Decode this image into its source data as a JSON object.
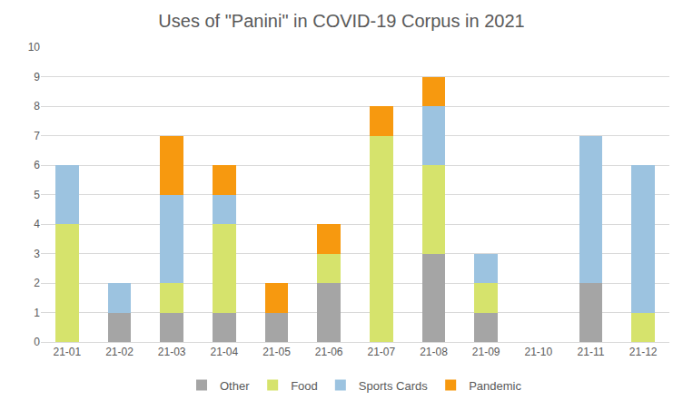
{
  "chart_data": {
    "type": "bar",
    "title": "Uses of \"Panini\" in COVID-19 Corpus in 2021",
    "categories": [
      "21-01",
      "21-02",
      "21-03",
      "21-04",
      "21-05",
      "21-06",
      "21-07",
      "21-08",
      "21-09",
      "21-10",
      "21-11",
      "21-12"
    ],
    "series": [
      {
        "name": "Other",
        "color": "#a5a5a5",
        "values": [
          0,
          1,
          1,
          1,
          1,
          2,
          0,
          3,
          1,
          0,
          2,
          0
        ]
      },
      {
        "name": "Food",
        "color": "#d6e36c",
        "values": [
          4,
          0,
          1,
          3,
          0,
          1,
          7,
          3,
          1,
          0,
          0,
          1
        ]
      },
      {
        "name": "Sports Cards",
        "color": "#9cc3e0",
        "values": [
          2,
          1,
          3,
          1,
          0,
          0,
          0,
          2,
          1,
          0,
          5,
          5
        ]
      },
      {
        "name": "Pandemic",
        "color": "#f7990f",
        "values": [
          0,
          0,
          2,
          1,
          1,
          1,
          1,
          1,
          0,
          0,
          0,
          0
        ]
      }
    ],
    "stacked": true,
    "ylim": [
      0,
      10
    ],
    "yticks": [
      0,
      1,
      2,
      3,
      4,
      5,
      6,
      7,
      8,
      9,
      10
    ],
    "grid": true,
    "legend": "bottom"
  }
}
